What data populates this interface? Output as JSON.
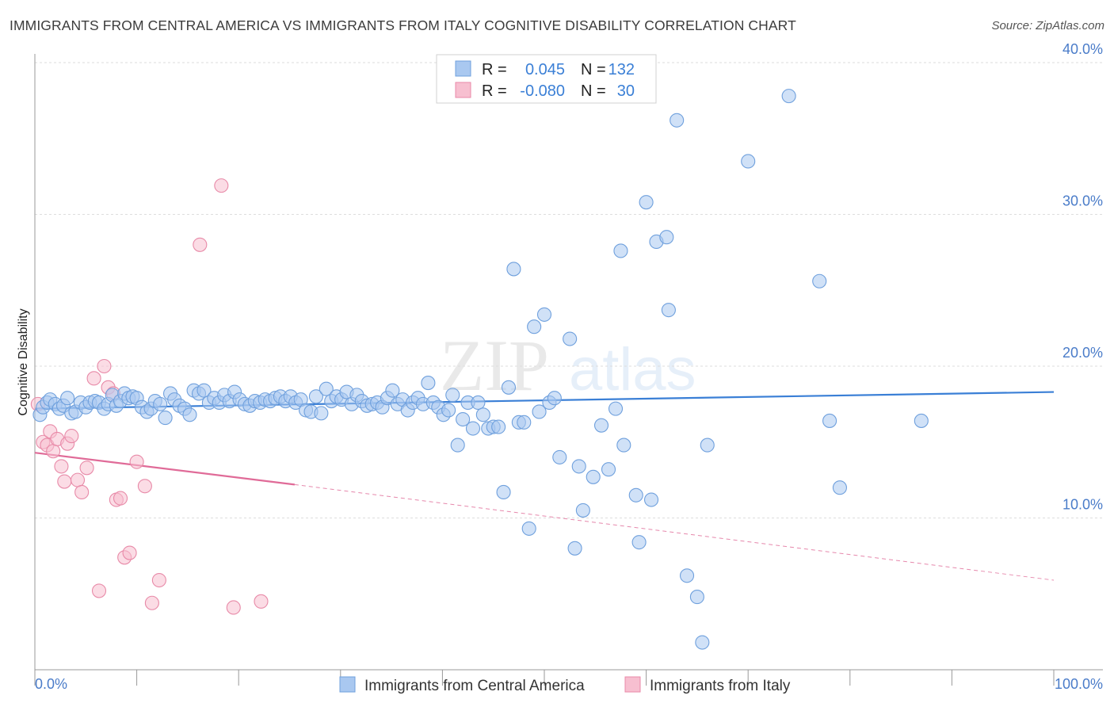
{
  "title": "IMMIGRANTS FROM CENTRAL AMERICA VS IMMIGRANTS FROM ITALY COGNITIVE DISABILITY CORRELATION CHART",
  "source": "Source: ZipAtlas.com",
  "watermark": {
    "zip": "ZIP",
    "atlas": "atlas"
  },
  "legend_top": {
    "rows": [
      {
        "r_label": "R =",
        "r_value": "0.045",
        "n_label": "N =",
        "n_value": "132",
        "color": "#a9c8f0",
        "border": "#6fa0dd"
      },
      {
        "r_label": "R =",
        "r_value": "-0.080",
        "n_label": "N =",
        "n_value": "30",
        "color": "#f7bfd0",
        "border": "#e88aa8"
      }
    ]
  },
  "legend_bottom": [
    {
      "label": "Immigrants from Central America",
      "color": "#a9c8f0",
      "border": "#6fa0dd"
    },
    {
      "label": "Immigrants from Italy",
      "color": "#f7bfd0",
      "border": "#e88aa8"
    }
  ],
  "chart_data": {
    "type": "scatter",
    "title": "IMMIGRANTS FROM CENTRAL AMERICA VS IMMIGRANTS FROM ITALY COGNITIVE DISABILITY CORRELATION CHART",
    "xlabel": "",
    "ylabel": "Cognitive Disability",
    "xlim": [
      0,
      100
    ],
    "ylim": [
      0,
      40
    ],
    "x_tick_labels": [
      "0.0%",
      "100.0%"
    ],
    "y_ticks": [
      10,
      20,
      30,
      40
    ],
    "y_tick_labels": [
      "10.0%",
      "20.0%",
      "30.0%",
      "40.0%"
    ],
    "colors": {
      "blue_fill": "#a9c8f0",
      "blue_stroke": "#6fa0dd",
      "blue_line": "#3a7fd6",
      "pink_fill": "#f7bfd0",
      "pink_stroke": "#e88aa8",
      "pink_line": "#e06b98",
      "tick": "#4a7cc9"
    },
    "series": [
      {
        "name": "Immigrants from Central America",
        "trend": {
          "x": [
            0,
            100
          ],
          "y": [
            17.2,
            18.3
          ]
        },
        "points": [
          [
            0.5,
            16.8
          ],
          [
            0.8,
            17.3
          ],
          [
            1.2,
            17.6
          ],
          [
            1.5,
            17.8
          ],
          [
            2.0,
            17.5
          ],
          [
            2.4,
            17.2
          ],
          [
            2.8,
            17.4
          ],
          [
            3.2,
            17.9
          ],
          [
            3.6,
            16.9
          ],
          [
            4.0,
            17.0
          ],
          [
            4.5,
            17.6
          ],
          [
            5.0,
            17.3
          ],
          [
            5.4,
            17.6
          ],
          [
            5.9,
            17.7
          ],
          [
            6.3,
            17.6
          ],
          [
            6.8,
            17.2
          ],
          [
            7.2,
            17.5
          ],
          [
            7.6,
            18.1
          ],
          [
            8.0,
            17.4
          ],
          [
            8.4,
            17.7
          ],
          [
            8.8,
            18.2
          ],
          [
            9.2,
            17.9
          ],
          [
            9.6,
            18.0
          ],
          [
            10.0,
            17.9
          ],
          [
            10.5,
            17.3
          ],
          [
            11.0,
            17.0
          ],
          [
            11.4,
            17.2
          ],
          [
            11.8,
            17.7
          ],
          [
            12.3,
            17.5
          ],
          [
            12.8,
            16.6
          ],
          [
            13.3,
            18.2
          ],
          [
            13.7,
            17.8
          ],
          [
            14.2,
            17.4
          ],
          [
            14.7,
            17.2
          ],
          [
            15.2,
            16.8
          ],
          [
            15.6,
            18.4
          ],
          [
            16.1,
            18.2
          ],
          [
            16.6,
            18.4
          ],
          [
            17.1,
            17.6
          ],
          [
            17.6,
            17.9
          ],
          [
            18.1,
            17.6
          ],
          [
            18.6,
            18.1
          ],
          [
            19.1,
            17.7
          ],
          [
            19.6,
            18.3
          ],
          [
            20.1,
            17.8
          ],
          [
            20.6,
            17.5
          ],
          [
            21.1,
            17.4
          ],
          [
            21.6,
            17.7
          ],
          [
            22.1,
            17.6
          ],
          [
            22.6,
            17.8
          ],
          [
            23.1,
            17.7
          ],
          [
            23.6,
            17.9
          ],
          [
            24.1,
            18.0
          ],
          [
            24.6,
            17.7
          ],
          [
            25.1,
            18.0
          ],
          [
            25.6,
            17.6
          ],
          [
            26.1,
            17.8
          ],
          [
            26.6,
            17.1
          ],
          [
            27.1,
            17.0
          ],
          [
            27.6,
            18.0
          ],
          [
            28.1,
            16.9
          ],
          [
            28.6,
            18.5
          ],
          [
            29.1,
            17.7
          ],
          [
            29.6,
            18.0
          ],
          [
            30.1,
            17.8
          ],
          [
            30.6,
            18.3
          ],
          [
            31.1,
            17.5
          ],
          [
            31.6,
            18.1
          ],
          [
            32.1,
            17.7
          ],
          [
            32.6,
            17.4
          ],
          [
            33.1,
            17.5
          ],
          [
            33.6,
            17.6
          ],
          [
            34.1,
            17.3
          ],
          [
            34.6,
            17.9
          ],
          [
            35.1,
            18.4
          ],
          [
            35.6,
            17.5
          ],
          [
            36.1,
            17.8
          ],
          [
            36.6,
            17.1
          ],
          [
            37.1,
            17.6
          ],
          [
            37.6,
            17.9
          ],
          [
            38.1,
            17.5
          ],
          [
            38.6,
            18.9
          ],
          [
            39.1,
            17.6
          ],
          [
            39.6,
            17.3
          ],
          [
            40.1,
            16.8
          ],
          [
            40.6,
            17.1
          ],
          [
            41.0,
            18.1
          ],
          [
            41.5,
            14.8
          ],
          [
            42.0,
            16.5
          ],
          [
            42.5,
            17.6
          ],
          [
            43.0,
            15.9
          ],
          [
            43.5,
            17.6
          ],
          [
            44.0,
            16.8
          ],
          [
            44.5,
            15.9
          ],
          [
            45.0,
            16.0
          ],
          [
            45.5,
            16.0
          ],
          [
            46.0,
            11.7
          ],
          [
            46.5,
            18.6
          ],
          [
            47.0,
            26.4
          ],
          [
            47.5,
            16.3
          ],
          [
            48.0,
            16.3
          ],
          [
            48.5,
            9.3
          ],
          [
            49.0,
            22.6
          ],
          [
            49.5,
            17.0
          ],
          [
            50.0,
            23.4
          ],
          [
            50.5,
            17.6
          ],
          [
            51.0,
            17.9
          ],
          [
            51.5,
            14.0
          ],
          [
            52.5,
            21.8
          ],
          [
            53.0,
            8.0
          ],
          [
            53.4,
            13.4
          ],
          [
            53.8,
            10.5
          ],
          [
            54.8,
            12.7
          ],
          [
            55.6,
            16.1
          ],
          [
            56.3,
            13.2
          ],
          [
            57.0,
            17.2
          ],
          [
            57.5,
            27.6
          ],
          [
            57.8,
            14.8
          ],
          [
            59.0,
            11.5
          ],
          [
            59.3,
            8.4
          ],
          [
            60.0,
            30.8
          ],
          [
            60.5,
            11.2
          ],
          [
            61.0,
            28.2
          ],
          [
            62.0,
            28.5
          ],
          [
            62.2,
            23.7
          ],
          [
            63.0,
            36.2
          ],
          [
            64.0,
            6.2
          ],
          [
            65.0,
            4.8
          ],
          [
            65.5,
            1.8
          ],
          [
            66.0,
            14.8
          ],
          [
            70.0,
            33.5
          ],
          [
            74.0,
            37.8
          ],
          [
            77.0,
            25.6
          ],
          [
            78.0,
            16.4
          ],
          [
            79.0,
            12.0
          ],
          [
            87.0,
            16.4
          ]
        ]
      },
      {
        "name": "Immigrants from Italy",
        "trend": {
          "x": [
            0,
            25.5
          ],
          "y": [
            14.3,
            12.2
          ],
          "dashed_to": {
            "x": 100,
            "y": 5.9
          }
        },
        "points": [
          [
            0.3,
            17.5
          ],
          [
            0.8,
            15.0
          ],
          [
            1.2,
            14.8
          ],
          [
            1.5,
            15.7
          ],
          [
            1.8,
            14.4
          ],
          [
            2.2,
            15.2
          ],
          [
            2.6,
            13.4
          ],
          [
            2.9,
            12.4
          ],
          [
            3.2,
            14.9
          ],
          [
            3.6,
            15.4
          ],
          [
            4.2,
            12.5
          ],
          [
            4.6,
            11.7
          ],
          [
            5.1,
            13.3
          ],
          [
            5.8,
            19.2
          ],
          [
            6.3,
            5.2
          ],
          [
            6.8,
            20.0
          ],
          [
            7.2,
            18.6
          ],
          [
            7.7,
            18.2
          ],
          [
            8.0,
            11.2
          ],
          [
            8.4,
            11.3
          ],
          [
            8.8,
            7.4
          ],
          [
            9.3,
            7.7
          ],
          [
            10.0,
            13.7
          ],
          [
            10.8,
            12.1
          ],
          [
            11.5,
            4.4
          ],
          [
            12.2,
            5.9
          ],
          [
            16.2,
            28.0
          ],
          [
            18.3,
            31.9
          ],
          [
            19.5,
            4.1
          ],
          [
            22.2,
            4.5
          ]
        ]
      }
    ]
  }
}
